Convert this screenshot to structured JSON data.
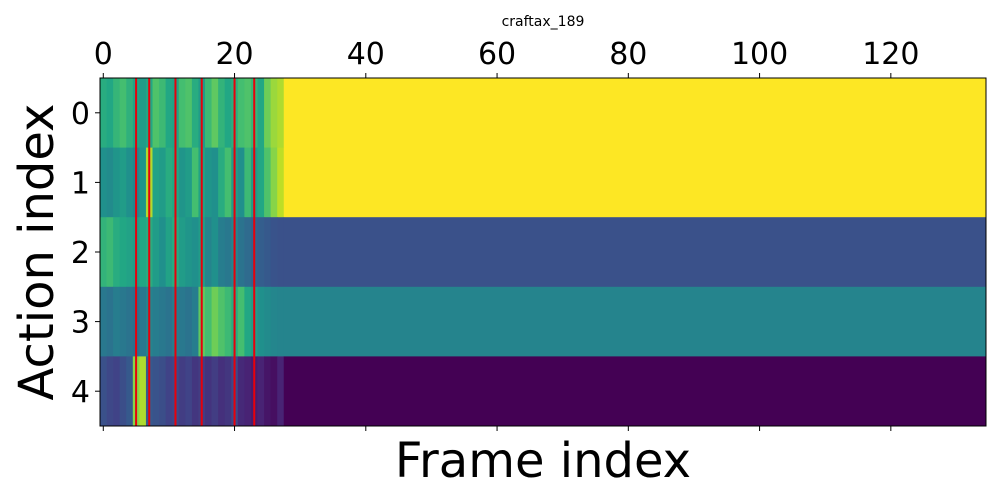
{
  "chart_data": {
    "type": "heatmap",
    "title": "craftax_189",
    "xlabel": "Frame index",
    "ylabel": "Action index",
    "x_ticks": [
      0,
      20,
      40,
      60,
      80,
      100,
      120
    ],
    "y_ticks": [
      0,
      1,
      2,
      3,
      4
    ],
    "x_axis_position": "top",
    "xlim": [
      -0.5,
      134.5
    ],
    "n_frames": 135,
    "n_actions": 5,
    "colormap": "viridis",
    "grid": false,
    "steady_state": {
      "from_frame": 28,
      "row_values": [
        1.0,
        1.0,
        0.25,
        0.45,
        0.0
      ]
    },
    "early_rows": [
      [
        0.62,
        0.6,
        0.66,
        0.7,
        0.64,
        0.58,
        0.55,
        0.6,
        0.72,
        0.68,
        0.6,
        0.58,
        0.7,
        0.72,
        0.62,
        0.55,
        0.68,
        0.75,
        0.65,
        0.6,
        0.63,
        0.7,
        0.72,
        0.66,
        0.6,
        0.78,
        0.85,
        0.88
      ],
      [
        0.5,
        0.48,
        0.52,
        0.55,
        0.5,
        0.45,
        0.52,
        0.88,
        0.58,
        0.55,
        0.62,
        0.6,
        0.52,
        0.55,
        0.7,
        0.58,
        0.52,
        0.5,
        0.62,
        0.7,
        0.55,
        0.5,
        0.68,
        0.55,
        0.6,
        0.72,
        0.82,
        0.9
      ],
      [
        0.65,
        0.68,
        0.62,
        0.6,
        0.58,
        0.55,
        0.6,
        0.62,
        0.55,
        0.5,
        0.58,
        0.62,
        0.55,
        0.52,
        0.5,
        0.55,
        0.45,
        0.5,
        0.42,
        0.4,
        0.45,
        0.38,
        0.35,
        0.32,
        0.3,
        0.28,
        0.26,
        0.25
      ],
      [
        0.4,
        0.38,
        0.42,
        0.4,
        0.38,
        0.36,
        0.4,
        0.45,
        0.42,
        0.4,
        0.38,
        0.42,
        0.4,
        0.38,
        0.42,
        0.75,
        0.7,
        0.78,
        0.72,
        0.68,
        0.62,
        0.7,
        0.6,
        0.55,
        0.5,
        0.48,
        0.46,
        0.45
      ],
      [
        0.25,
        0.22,
        0.2,
        0.24,
        0.28,
        0.82,
        0.88,
        0.28,
        0.26,
        0.24,
        0.2,
        0.22,
        0.18,
        0.2,
        0.16,
        0.18,
        0.15,
        0.18,
        0.14,
        0.16,
        0.22,
        0.12,
        0.1,
        0.08,
        0.1,
        0.06,
        0.04,
        0.1
      ]
    ],
    "highlight_frames": [
      5,
      7,
      11,
      15,
      20,
      23
    ],
    "highlight_color": "#e8000b"
  }
}
